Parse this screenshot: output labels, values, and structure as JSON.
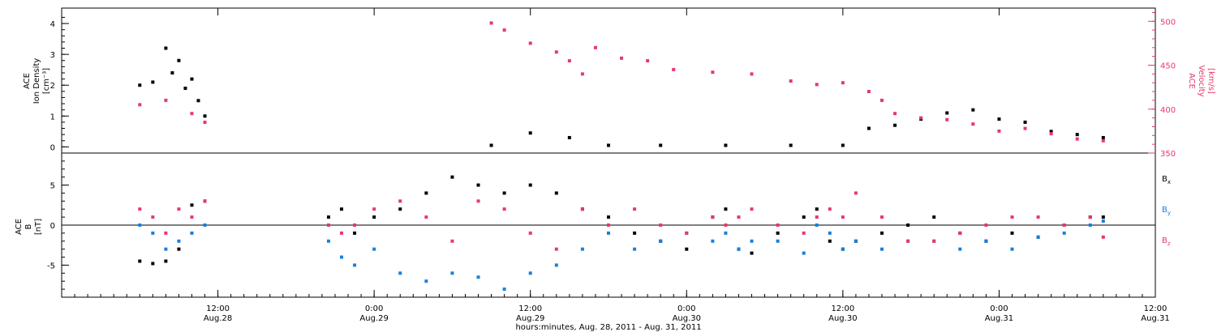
{
  "chart_data": [
    {
      "type": "scatter",
      "panel": "top",
      "left_axis": {
        "label_lines": [
          "ACE",
          "Ion Density",
          "[cm⁻³]"
        ],
        "ticks": [
          "0",
          "1",
          "2",
          "3",
          "4"
        ],
        "range": [
          -0.2,
          4.5
        ]
      },
      "right_axis": {
        "label_lines": [
          "ACE",
          "Velocity",
          "[km/s]"
        ],
        "ticks": [
          "350",
          "400",
          "450",
          "500"
        ],
        "range": [
          350,
          515
        ]
      },
      "series": [
        {
          "key": "density",
          "color": "#000000",
          "axis": "left",
          "points": [
            [
              0.0,
              2.0
            ],
            [
              1.0,
              2.1
            ],
            [
              2.0,
              3.2
            ],
            [
              2.5,
              2.4
            ],
            [
              3.0,
              2.8
            ],
            [
              3.5,
              1.9
            ],
            [
              4.0,
              2.2
            ],
            [
              4.5,
              1.5
            ],
            [
              5.0,
              1.0
            ],
            [
              27.0,
              0.05
            ],
            [
              30.0,
              0.45
            ],
            [
              33.0,
              0.3
            ],
            [
              36.0,
              0.05
            ],
            [
              40.0,
              0.05
            ],
            [
              45.0,
              0.05
            ],
            [
              50.0,
              0.05
            ],
            [
              54.0,
              0.05
            ],
            [
              56.0,
              0.6
            ],
            [
              58.0,
              0.7
            ],
            [
              60.0,
              0.9
            ],
            [
              62.0,
              1.1
            ],
            [
              64.0,
              1.2
            ],
            [
              66.0,
              0.9
            ],
            [
              68.0,
              0.8
            ],
            [
              70.0,
              0.5
            ],
            [
              72.0,
              0.4
            ],
            [
              74.0,
              0.3
            ]
          ]
        },
        {
          "key": "velocity",
          "color": "#e8386a",
          "axis": "right",
          "points": [
            [
              0.0,
              405
            ],
            [
              2.0,
              410
            ],
            [
              4.0,
              395
            ],
            [
              5.0,
              385
            ],
            [
              27.0,
              498
            ],
            [
              28.0,
              490
            ],
            [
              30.0,
              475
            ],
            [
              32.0,
              465
            ],
            [
              33.0,
              455
            ],
            [
              34.0,
              440
            ],
            [
              35.0,
              470
            ],
            [
              37.0,
              458
            ],
            [
              39.0,
              455
            ],
            [
              41.0,
              445
            ],
            [
              44.0,
              442
            ],
            [
              47.0,
              440
            ],
            [
              50.0,
              432
            ],
            [
              52.0,
              428
            ],
            [
              54.0,
              430
            ],
            [
              56.0,
              420
            ],
            [
              57.0,
              410
            ],
            [
              58.0,
              395
            ],
            [
              60.0,
              390
            ],
            [
              62.0,
              388
            ],
            [
              64.0,
              383
            ],
            [
              66.0,
              375
            ],
            [
              68.0,
              378
            ],
            [
              70.0,
              372
            ],
            [
              72.0,
              366
            ],
            [
              74.0,
              364
            ]
          ]
        }
      ]
    },
    {
      "type": "scatter",
      "panel": "bottom",
      "left_axis": {
        "label_lines": [
          "ACE",
          "B",
          "[nT]"
        ],
        "ticks": [
          "-5",
          "0",
          "5"
        ],
        "range": [
          -9,
          9
        ]
      },
      "legend": {
        "placement": "right",
        "entries": [
          "Bx",
          "By",
          "Bz"
        ]
      },
      "series": [
        {
          "key": "Bx",
          "color": "#000000",
          "points": [
            [
              0,
              -4.5
            ],
            [
              1,
              -4.8
            ],
            [
              2,
              -4.5
            ],
            [
              3,
              -3
            ],
            [
              4,
              2.5
            ],
            [
              5,
              3
            ],
            [
              14.5,
              1
            ],
            [
              15.5,
              2
            ],
            [
              16.5,
              -1
            ],
            [
              18,
              1
            ],
            [
              20,
              2
            ],
            [
              22,
              4
            ],
            [
              24,
              6
            ],
            [
              26,
              5
            ],
            [
              28,
              4
            ],
            [
              30,
              5
            ],
            [
              32,
              4
            ],
            [
              34,
              2
            ],
            [
              36,
              1
            ],
            [
              38,
              -1
            ],
            [
              40,
              -2
            ],
            [
              42,
              -3
            ],
            [
              44,
              1
            ],
            [
              45,
              2
            ],
            [
              46,
              -3
            ],
            [
              47,
              -3.5
            ],
            [
              49,
              -1
            ],
            [
              51,
              1
            ],
            [
              52,
              2
            ],
            [
              53,
              -2
            ],
            [
              54,
              -3
            ],
            [
              55,
              -2
            ],
            [
              57,
              -1
            ],
            [
              59,
              0
            ],
            [
              61,
              1
            ],
            [
              63,
              -1
            ],
            [
              65,
              -2
            ],
            [
              67,
              -1
            ],
            [
              69,
              -1.5
            ],
            [
              71,
              0
            ],
            [
              73,
              1
            ],
            [
              74,
              1
            ]
          ]
        },
        {
          "key": "By",
          "color": "#1a7fd8",
          "points": [
            [
              0,
              0
            ],
            [
              1,
              -1
            ],
            [
              2,
              -3
            ],
            [
              3,
              -2
            ],
            [
              4,
              -1
            ],
            [
              5,
              0
            ],
            [
              14.5,
              -2
            ],
            [
              15.5,
              -4
            ],
            [
              16.5,
              -5
            ],
            [
              18,
              -3
            ],
            [
              20,
              -6
            ],
            [
              22,
              -7
            ],
            [
              24,
              -6
            ],
            [
              26,
              -6.5
            ],
            [
              28,
              -8
            ],
            [
              30,
              -6
            ],
            [
              32,
              -5
            ],
            [
              34,
              -3
            ],
            [
              36,
              -1
            ],
            [
              38,
              -3
            ],
            [
              40,
              -2
            ],
            [
              42,
              -1
            ],
            [
              44,
              -2
            ],
            [
              45,
              -1
            ],
            [
              46,
              -3
            ],
            [
              47,
              -2
            ],
            [
              49,
              -2
            ],
            [
              51,
              -3.5
            ],
            [
              52,
              0
            ],
            [
              53,
              -1
            ],
            [
              54,
              -3
            ],
            [
              55,
              -2
            ],
            [
              57,
              -3
            ],
            [
              59,
              -2
            ],
            [
              61,
              -2
            ],
            [
              63,
              -3
            ],
            [
              65,
              -2
            ],
            [
              67,
              -3
            ],
            [
              69,
              -1.5
            ],
            [
              71,
              -1
            ],
            [
              73,
              0
            ],
            [
              74,
              0.5
            ]
          ]
        },
        {
          "key": "Bz",
          "color": "#e8386a",
          "points": [
            [
              0,
              2
            ],
            [
              1,
              1
            ],
            [
              2,
              -1
            ],
            [
              3,
              2
            ],
            [
              4,
              1
            ],
            [
              5,
              3
            ],
            [
              14.5,
              0
            ],
            [
              15.5,
              -1
            ],
            [
              16.5,
              0
            ],
            [
              18,
              2
            ],
            [
              20,
              3
            ],
            [
              22,
              1
            ],
            [
              24,
              -2
            ],
            [
              26,
              3
            ],
            [
              28,
              2
            ],
            [
              30,
              -1
            ],
            [
              32,
              -3
            ],
            [
              34,
              2
            ],
            [
              36,
              0
            ],
            [
              38,
              2
            ],
            [
              40,
              0
            ],
            [
              42,
              -1
            ],
            [
              44,
              1
            ],
            [
              45,
              0
            ],
            [
              46,
              1
            ],
            [
              47,
              2
            ],
            [
              49,
              0
            ],
            [
              51,
              -1
            ],
            [
              52,
              1
            ],
            [
              53,
              2
            ],
            [
              54,
              1
            ],
            [
              55,
              4
            ],
            [
              57,
              1
            ],
            [
              59,
              -2
            ],
            [
              61,
              -2
            ],
            [
              63,
              -1
            ],
            [
              65,
              0
            ],
            [
              67,
              1
            ],
            [
              69,
              1
            ],
            [
              71,
              0
            ],
            [
              73,
              1
            ],
            [
              74,
              -1.5
            ]
          ]
        }
      ]
    }
  ],
  "x_axis": {
    "title": "hours:minutes, Aug. 28, 2011 - Aug. 31, 2011",
    "range_hours": [
      -6,
      78
    ],
    "ticks": [
      {
        "hours": 6,
        "time": "12:00",
        "date": "Aug.28"
      },
      {
        "hours": 18,
        "time": "0:00",
        "date": "Aug.29"
      },
      {
        "hours": 30,
        "time": "12:00",
        "date": "Aug.29"
      },
      {
        "hours": 42,
        "time": "0:00",
        "date": "Aug.30"
      },
      {
        "hours": 54,
        "time": "12:00",
        "date": "Aug.30"
      },
      {
        "hours": 66,
        "time": "0:00",
        "date": "Aug.31"
      },
      {
        "hours": 78,
        "time": "12:00",
        "date": "Aug.31"
      }
    ]
  },
  "legend_labels": {
    "Bx": "B",
    "By": "B",
    "Bz": "B",
    "Bx_sub": "x",
    "By_sub": "y",
    "Bz_sub": "z"
  }
}
